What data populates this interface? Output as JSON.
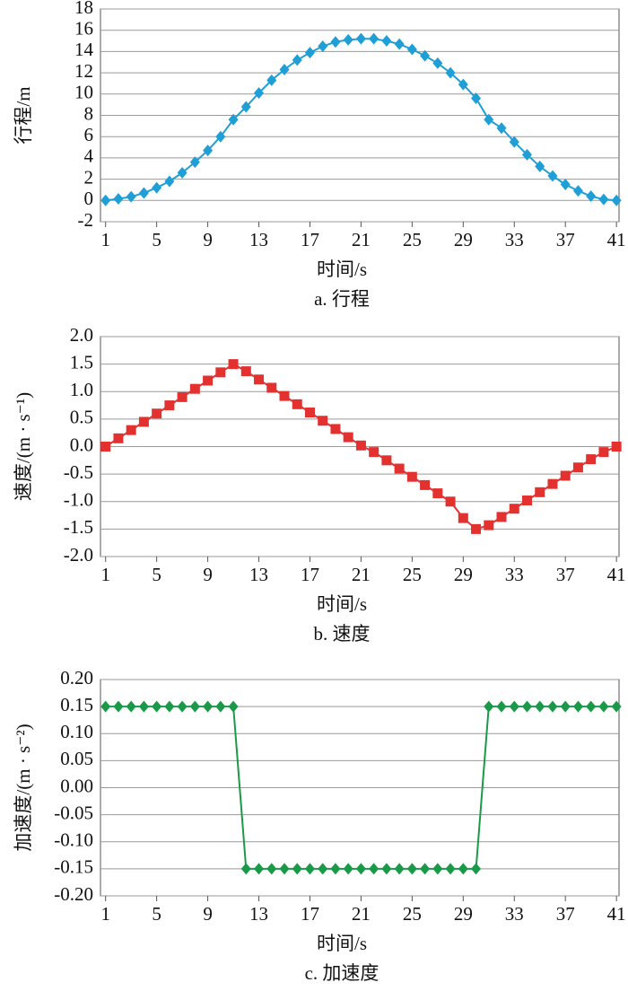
{
  "chart_data": [
    {
      "type": "line",
      "caption": "a. 行程",
      "xlabel": "时间/s",
      "ylabel": "行程/m",
      "marker": "diamond",
      "color": "#1f9fd6",
      "grid": true,
      "x": [
        1,
        2,
        3,
        4,
        5,
        6,
        7,
        8,
        9,
        10,
        11,
        12,
        13,
        14,
        15,
        16,
        17,
        18,
        19,
        20,
        21,
        22,
        23,
        24,
        25,
        26,
        27,
        28,
        29,
        30,
        31,
        32,
        33,
        34,
        35,
        36,
        37,
        38,
        39,
        40,
        41
      ],
      "values": [
        0,
        0.15,
        0.35,
        0.7,
        1.2,
        1.8,
        2.6,
        3.6,
        4.7,
        6.0,
        7.6,
        8.8,
        10.1,
        11.3,
        12.3,
        13.2,
        13.9,
        14.5,
        14.9,
        15.1,
        15.2,
        15.2,
        15.0,
        14.7,
        14.2,
        13.6,
        12.9,
        12.0,
        10.9,
        9.6,
        7.6,
        6.8,
        5.5,
        4.3,
        3.2,
        2.3,
        1.5,
        0.9,
        0.4,
        0.1,
        0
      ],
      "xlim": [
        0.6,
        41.2
      ],
      "xticks": [
        1,
        5,
        9,
        13,
        17,
        21,
        25,
        29,
        33,
        37,
        41
      ],
      "ylim": [
        -2,
        18
      ],
      "yticks": [
        -2,
        0,
        2,
        4,
        6,
        8,
        10,
        12,
        14,
        16,
        18
      ]
    },
    {
      "type": "line",
      "caption": "b. 速度",
      "xlabel": "时间/s",
      "ylabel": "速度/(m · s⁻¹)",
      "marker": "square",
      "color": "#e2312f",
      "grid": true,
      "x": [
        1,
        2,
        3,
        4,
        5,
        6,
        7,
        8,
        9,
        10,
        11,
        12,
        13,
        14,
        15,
        16,
        17,
        18,
        19,
        20,
        21,
        22,
        23,
        24,
        25,
        26,
        27,
        28,
        29,
        30,
        31,
        32,
        33,
        34,
        35,
        36,
        37,
        38,
        39,
        40,
        41
      ],
      "values": [
        0,
        0.15,
        0.3,
        0.45,
        0.6,
        0.75,
        0.9,
        1.05,
        1.2,
        1.35,
        1.5,
        1.37,
        1.22,
        1.07,
        0.92,
        0.77,
        0.62,
        0.47,
        0.32,
        0.17,
        0.02,
        -0.1,
        -0.25,
        -0.4,
        -0.55,
        -0.7,
        -0.85,
        -1.0,
        -1.3,
        -1.5,
        -1.43,
        -1.28,
        -1.13,
        -0.98,
        -0.83,
        -0.68,
        -0.53,
        -0.38,
        -0.23,
        -0.1,
        0
      ],
      "xlim": [
        0.6,
        41.2
      ],
      "xticks": [
        1,
        5,
        9,
        13,
        17,
        21,
        25,
        29,
        33,
        37,
        41
      ],
      "ylim": [
        -2,
        2
      ],
      "yticks": [
        {
          "value": -2,
          "label": "-2.0"
        },
        {
          "value": -1.5,
          "label": "-1.5"
        },
        {
          "value": -1,
          "label": "-1.0"
        },
        {
          "value": -0.5,
          "label": "-0.5"
        },
        {
          "value": 0,
          "label": "0.0"
        },
        {
          "value": 0.5,
          "label": "0.5"
        },
        {
          "value": 1,
          "label": "1.0"
        },
        {
          "value": 1.5,
          "label": "1.5"
        },
        {
          "value": 2,
          "label": "2.0"
        }
      ]
    },
    {
      "type": "line",
      "caption": "c. 加速度",
      "xlabel": "时间/s",
      "ylabel": "加速度/(m · s⁻²)",
      "marker": "diamond",
      "color": "#1a9a48",
      "grid": true,
      "x": [
        1,
        2,
        3,
        4,
        5,
        6,
        7,
        8,
        9,
        10,
        11,
        12,
        13,
        14,
        15,
        16,
        17,
        18,
        19,
        20,
        21,
        22,
        23,
        24,
        25,
        26,
        27,
        28,
        29,
        30,
        31,
        32,
        33,
        34,
        35,
        36,
        37,
        38,
        39,
        40,
        41
      ],
      "values": [
        0.15,
        0.15,
        0.15,
        0.15,
        0.15,
        0.15,
        0.15,
        0.15,
        0.15,
        0.15,
        0.15,
        -0.15,
        -0.15,
        -0.15,
        -0.15,
        -0.15,
        -0.15,
        -0.15,
        -0.15,
        -0.15,
        -0.15,
        -0.15,
        -0.15,
        -0.15,
        -0.15,
        -0.15,
        -0.15,
        -0.15,
        -0.15,
        -0.15,
        0.15,
        0.15,
        0.15,
        0.15,
        0.15,
        0.15,
        0.15,
        0.15,
        0.15,
        0.15,
        0.15
      ],
      "xlim": [
        0.6,
        41.2
      ],
      "xticks": [
        1,
        5,
        9,
        13,
        17,
        21,
        25,
        29,
        33,
        37,
        41
      ],
      "ylim": [
        -0.2,
        0.2
      ],
      "yticks": [
        {
          "value": -0.2,
          "label": "-0.20"
        },
        {
          "value": -0.15,
          "label": "-0.15"
        },
        {
          "value": -0.1,
          "label": "-0.10"
        },
        {
          "value": -0.05,
          "label": "-0.05"
        },
        {
          "value": 0,
          "label": "0.00"
        },
        {
          "value": 0.05,
          "label": "0.05"
        },
        {
          "value": 0.1,
          "label": "0.10"
        },
        {
          "value": 0.15,
          "label": "0.15"
        },
        {
          "value": 0.2,
          "label": "0.20"
        }
      ]
    }
  ]
}
